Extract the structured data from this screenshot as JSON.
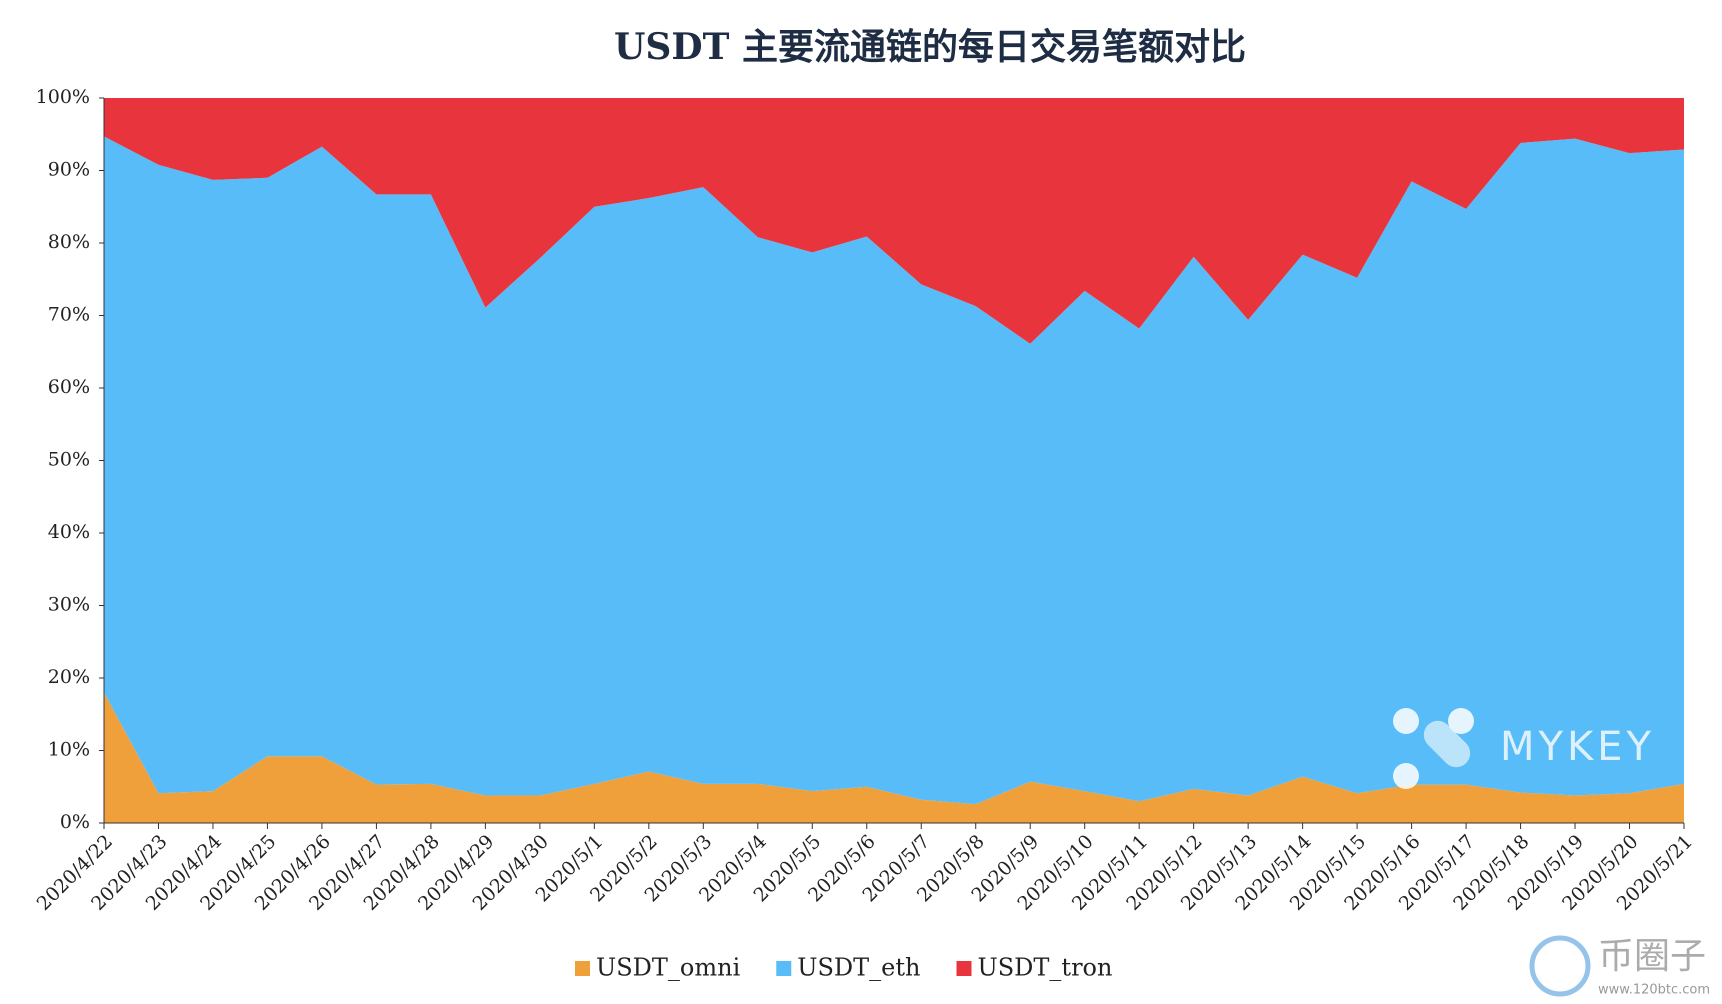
{
  "chart_data": {
    "type": "stacked_area_percent",
    "title": "USDT 主要流通链的每日交易笔额对比",
    "x": [
      "2020/4/22",
      "2020/4/23",
      "2020/4/24",
      "2020/4/25",
      "2020/4/26",
      "2020/4/27",
      "2020/4/28",
      "2020/4/29",
      "2020/4/30",
      "2020/5/1",
      "2020/5/2",
      "2020/5/3",
      "2020/5/4",
      "2020/5/5",
      "2020/5/6",
      "2020/5/7",
      "2020/5/8",
      "2020/5/9",
      "2020/5/10",
      "2020/5/11",
      "2020/5/12",
      "2020/5/13",
      "2020/5/14",
      "2020/5/15",
      "2020/5/16",
      "2020/5/17",
      "2020/5/18",
      "2020/5/19",
      "2020/5/20",
      "2020/5/21"
    ],
    "series": [
      {
        "name": "USDT_omni",
        "color": "#f0a03a",
        "values": [
          18.0,
          4.1,
          4.4,
          9.2,
          9.2,
          5.3,
          5.4,
          3.8,
          3.8,
          5.4,
          7.1,
          5.4,
          5.4,
          4.4,
          5.0,
          3.2,
          2.6,
          5.7,
          4.4,
          3.0,
          4.7,
          3.8,
          6.4,
          4.1,
          5.3,
          5.3,
          4.2,
          3.8,
          4.1,
          5.4
        ]
      },
      {
        "name": "USDT_eth",
        "color": "#57bcf7",
        "values": [
          76.7,
          86.7,
          84.3,
          79.8,
          84.1,
          81.4,
          81.3,
          67.3,
          74.1,
          79.6,
          79.1,
          82.3,
          75.4,
          74.3,
          75.9,
          71.1,
          68.7,
          60.4,
          69.0,
          65.2,
          73.4,
          65.6,
          72.0,
          71.1,
          83.2,
          79.4,
          89.6,
          90.6,
          88.3,
          87.5
        ]
      },
      {
        "name": "USDT_tron",
        "color": "#e8343c",
        "values": [
          5.3,
          9.2,
          11.3,
          11.0,
          6.7,
          13.3,
          13.3,
          28.9,
          22.1,
          15.0,
          13.8,
          12.3,
          19.2,
          21.3,
          19.1,
          25.7,
          28.7,
          33.9,
          26.6,
          31.8,
          21.9,
          30.6,
          21.6,
          24.8,
          11.5,
          15.3,
          6.2,
          5.6,
          7.6,
          7.1
        ]
      }
    ],
    "ylim": [
      0,
      100
    ],
    "yticks": [
      {
        "value": 0,
        "label": "0%"
      },
      {
        "value": 10,
        "label": "10%"
      },
      {
        "value": 20,
        "label": "20%"
      },
      {
        "value": 30,
        "label": "30%"
      },
      {
        "value": 40,
        "label": "40%"
      },
      {
        "value": 50,
        "label": "50%"
      },
      {
        "value": 60,
        "label": "60%"
      },
      {
        "value": 70,
        "label": "70%"
      },
      {
        "value": 80,
        "label": "80%"
      },
      {
        "value": 90,
        "label": "90%"
      },
      {
        "value": 100,
        "label": "100%"
      }
    ],
    "legend": "bottom",
    "watermarks": [
      "MYKEY",
      "币圈子",
      "www.120btc.com"
    ]
  }
}
